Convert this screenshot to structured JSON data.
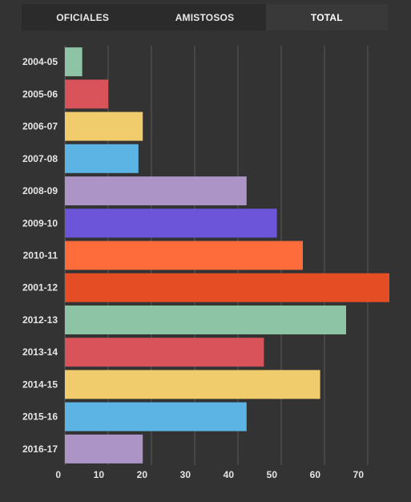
{
  "tabs": [
    {
      "label": "OFICIALES",
      "active": false
    },
    {
      "label": "AMISTOSOS",
      "active": false
    },
    {
      "label": "TOTAL",
      "active": true
    }
  ],
  "colors": {
    "background": "#333333",
    "gridline": "#5a5a5a",
    "label": "#e6e6e6"
  },
  "chart_data": {
    "type": "bar",
    "orientation": "horizontal",
    "categories": [
      "2004-05",
      "2005-06",
      "2006-07",
      "2007-08",
      "2008-09",
      "2009-10",
      "2010-11",
      "2001-12",
      "2012-13",
      "2013-14",
      "2014-15",
      "2015-16",
      "2016-17"
    ],
    "values": [
      4,
      10,
      18,
      17,
      42,
      49,
      55,
      75,
      65,
      46,
      59,
      42,
      18
    ],
    "bar_colors": [
      "#8ec4a6",
      "#d9545a",
      "#f0cc6c",
      "#5cb4e4",
      "#ac94c7",
      "#6c55d9",
      "#ff6c3b",
      "#e54e24",
      "#8ec4a6",
      "#d9545a",
      "#f0cc6c",
      "#5cb4e4",
      "#ac94c7"
    ],
    "xticks": [
      0,
      10,
      20,
      30,
      40,
      50,
      60,
      70
    ],
    "xlim": [
      0,
      75
    ],
    "grid": true,
    "title": "",
    "xlabel": "",
    "ylabel": ""
  }
}
